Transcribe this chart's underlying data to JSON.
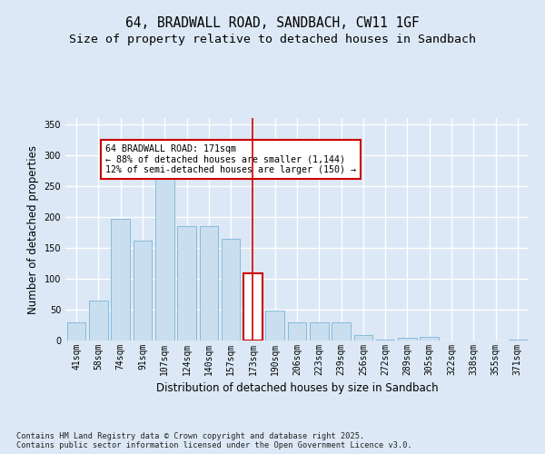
{
  "title_line1": "64, BRADWALL ROAD, SANDBACH, CW11 1GF",
  "title_line2": "Size of property relative to detached houses in Sandbach",
  "xlabel": "Distribution of detached houses by size in Sandbach",
  "ylabel": "Number of detached properties",
  "categories": [
    "41sqm",
    "58sqm",
    "74sqm",
    "91sqm",
    "107sqm",
    "124sqm",
    "140sqm",
    "157sqm",
    "173sqm",
    "190sqm",
    "206sqm",
    "223sqm",
    "239sqm",
    "256sqm",
    "272sqm",
    "289sqm",
    "305sqm",
    "322sqm",
    "338sqm",
    "355sqm",
    "371sqm"
  ],
  "values": [
    29,
    65,
    197,
    161,
    261,
    185,
    185,
    165,
    109,
    49,
    30,
    29,
    29,
    9,
    2,
    4,
    6,
    0,
    0,
    0,
    2
  ],
  "bar_color": "#c9dff0",
  "bar_edge_color": "#7ab4d8",
  "highlight_index": 8,
  "highlight_line_color": "#cc0000",
  "annotation_text": "64 BRADWALL ROAD: 171sqm\n← 88% of detached houses are smaller (1,144)\n12% of semi-detached houses are larger (150) →",
  "annotation_box_color": "#ffffff",
  "annotation_box_edge_color": "#cc0000",
  "ylim": [
    0,
    360
  ],
  "yticks": [
    0,
    50,
    100,
    150,
    200,
    250,
    300,
    350
  ],
  "footer_text": "Contains HM Land Registry data © Crown copyright and database right 2025.\nContains public sector information licensed under the Open Government Licence v3.0.",
  "background_color": "#dce8f5",
  "plot_background_color": "#dce8f5",
  "grid_color": "#ffffff",
  "title_fontsize": 10.5,
  "subtitle_fontsize": 9.5,
  "tick_fontsize": 7,
  "label_fontsize": 8.5,
  "footer_fontsize": 6.2
}
